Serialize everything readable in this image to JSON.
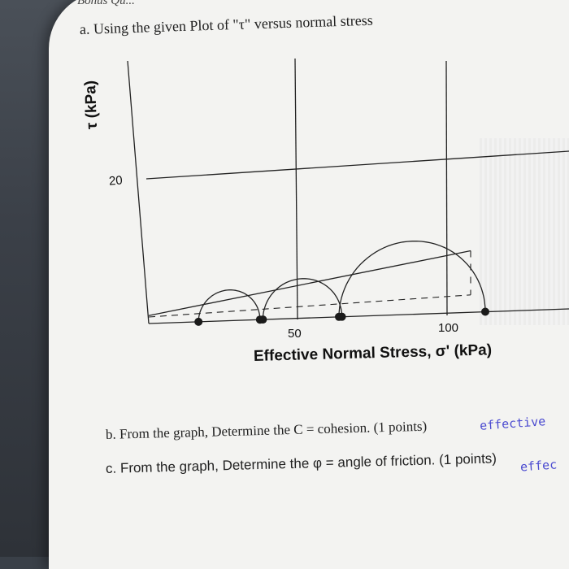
{
  "header_fragment": "Bonus Qu...",
  "question_a": "a. Using the given Plot of \"τ\" versus normal stress",
  "question_b": "b. From the graph, Determine the C = cohesion. (1 points)",
  "question_c": "c. From the graph, Determine the φ = angle of friction. (1 points)",
  "answer_b": "effective",
  "answer_c": "effec",
  "chart_data": {
    "type": "scatter",
    "ylabel": "τ (kPa)",
    "xlabel": "Effective Normal Stress, σ' (kPa)",
    "x_ticks": [
      "50",
      "100"
    ],
    "y_ticks": [
      "20"
    ],
    "x_tick_values": [
      50,
      100
    ],
    "y_tick_values": [
      20
    ],
    "circles": [
      {
        "sigma3": 17,
        "sigma1": 38
      },
      {
        "sigma3": 39,
        "sigma1": 66
      },
      {
        "sigma3": 65,
        "sigma1": 115
      }
    ],
    "envelope": {
      "tau_at_0": 1.1,
      "tau_at_110": 8.5
    },
    "colors": {
      "ink": "#222222",
      "pen": "#4a4ad0"
    }
  }
}
